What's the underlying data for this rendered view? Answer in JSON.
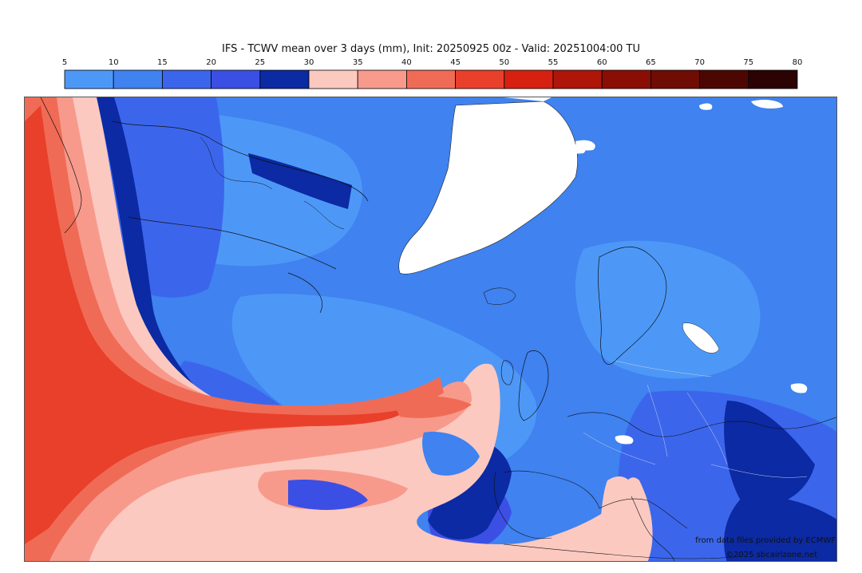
{
  "title": "IFS - TCWV mean over 3 days (mm), Init: 20250925 00z - Valid: 20251004:00 TU",
  "colorbar": {
    "ticks": [
      "5",
      "10",
      "15",
      "20",
      "25",
      "30",
      "35",
      "40",
      "45",
      "50",
      "55",
      "60",
      "65",
      "70",
      "75",
      "80"
    ],
    "colors": [
      "#4d98f7",
      "#3f82f0",
      "#3b66ec",
      "#3c4fe4",
      "#0b2aa3",
      "#fbc9c0",
      "#f79a8c",
      "#f06b55",
      "#e9402b",
      "#d62111",
      "#ad1609",
      "#8b0e05",
      "#6f0c04",
      "#4d0703",
      "#2a0302"
    ]
  },
  "credits": {
    "source": "from data files provided by ECMWF",
    "copyright": "©2025 sbcairizone.net"
  }
}
